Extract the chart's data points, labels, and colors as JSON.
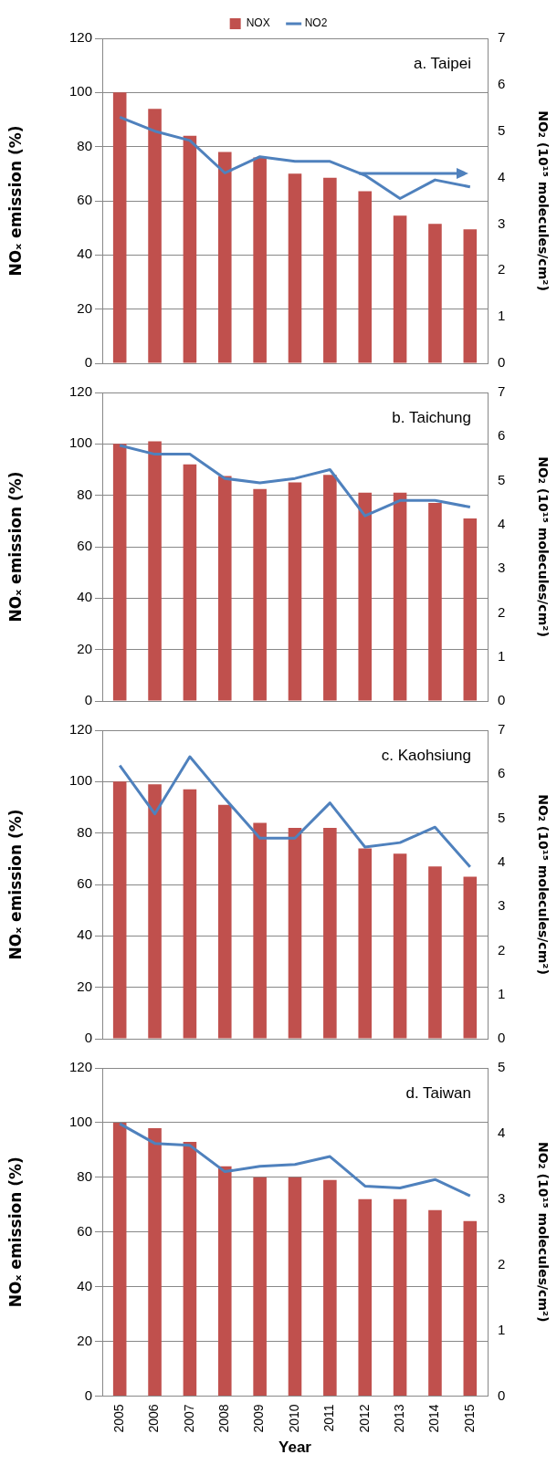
{
  "chart_data": [
    {
      "type": "bar",
      "title": "a. Taipei",
      "categories": [
        "2005",
        "2006",
        "2007",
        "2008",
        "2009",
        "2010",
        "2011",
        "2012",
        "2013",
        "2014",
        "2015"
      ],
      "ylabel": "NOₓ emission (%)",
      "y2label": "NO₂ (10¹⁵ molecules/cm²)",
      "series": [
        {
          "name": "NOX",
          "color": "#c0504d",
          "values": [
            100,
            94,
            84,
            78,
            76,
            70,
            68.5,
            63.5,
            54.5,
            51.5,
            49.5
          ]
        },
        {
          "name": "NO2",
          "type": "line",
          "axis": "y2",
          "color": "#4f81bd",
          "values": [
            5.3,
            5.0,
            4.8,
            4.1,
            4.45,
            4.35,
            4.35,
            4.05,
            3.55,
            3.95,
            3.8
          ]
        }
      ],
      "ylim": [
        0,
        120
      ],
      "yticks": [
        0,
        20,
        40,
        60,
        80,
        100,
        120
      ],
      "y2lim": [
        0,
        7
      ],
      "y2ticks": [
        0,
        1,
        2,
        3,
        4,
        5,
        6,
        7
      ],
      "grid": "y",
      "legend": "top",
      "marker": "none",
      "tick_labels": "y"
    },
    {
      "type": "bar",
      "title": "b. Taichung",
      "categories": [
        "2005",
        "2006",
        "2007",
        "2008",
        "2009",
        "2010",
        "2011",
        "2012",
        "2013",
        "2014",
        "2015"
      ],
      "ylabel": "NOₓ emission (%)",
      "y2label": "NO₂ (10¹⁵ molecules/cm²)",
      "series": [
        {
          "color": "#c0504d",
          "values": [
            100,
            101,
            92,
            87.5,
            82.5,
            85,
            88,
            81,
            81,
            77,
            71
          ]
        },
        {
          "type": "line",
          "axis": "y2",
          "color": "#4f81bd",
          "values": [
            5.8,
            5.6,
            5.6,
            5.05,
            4.95,
            5.05,
            5.25,
            4.2,
            4.55,
            4.55,
            4.4
          ]
        }
      ],
      "ylim": [
        0,
        120
      ],
      "yticks": [
        0,
        20,
        40,
        60,
        80,
        100,
        120
      ],
      "y2lim": [
        0,
        7
      ],
      "y2ticks": [
        0,
        1,
        2,
        3,
        4,
        5,
        6,
        7
      ],
      "grid": "y",
      "marker": "none",
      "tick_labels": "y"
    },
    {
      "type": "bar",
      "title": "c. Kaohsiung",
      "categories": [
        "2005",
        "2006",
        "2007",
        "2008",
        "2009",
        "2010",
        "2011",
        "2012",
        "2013",
        "2014",
        "2015"
      ],
      "ylabel": "NOₓ emission (%)",
      "y2label": "NO₂ (10¹⁵ molecules/cm²)",
      "series": [
        {
          "color": "#c0504d",
          "values": [
            100,
            99,
            97,
            91,
            84,
            82,
            82,
            74,
            72,
            67,
            63
          ]
        },
        {
          "type": "line",
          "axis": "y2",
          "color": "#4f81bd",
          "values": [
            6.2,
            5.1,
            6.4,
            5.45,
            4.55,
            4.55,
            5.35,
            4.35,
            4.45,
            4.8,
            3.9
          ]
        }
      ],
      "ylim": [
        0,
        120
      ],
      "yticks": [
        0,
        20,
        40,
        60,
        80,
        100,
        120
      ],
      "y2lim": [
        0,
        7
      ],
      "y2ticks": [
        0,
        1,
        2,
        3,
        4,
        5,
        6,
        7
      ],
      "grid": "y",
      "marker": "none",
      "tick_labels": "y"
    },
    {
      "type": "bar",
      "title": "d. Taiwan",
      "categories": [
        "2005",
        "2006",
        "2007",
        "2008",
        "2009",
        "2010",
        "2011",
        "2012",
        "2013",
        "2014",
        "2015"
      ],
      "xlabel": "Year",
      "ylabel": "NOₓ emission (%)",
      "y2label": "NO₂ (10¹⁵ molecules/cm²)",
      "series": [
        {
          "color": "#c0504d",
          "values": [
            100,
            98,
            93,
            84,
            80,
            80,
            79,
            72,
            72,
            68,
            64
          ]
        },
        {
          "type": "line",
          "axis": "y2",
          "color": "#4f81bd",
          "values": [
            4.15,
            3.85,
            3.82,
            3.42,
            3.5,
            3.53,
            3.65,
            3.2,
            3.17,
            3.3,
            3.05
          ]
        }
      ],
      "ylim": [
        0,
        120
      ],
      "yticks": [
        0,
        20,
        40,
        60,
        80,
        100,
        120
      ],
      "y2lim": [
        0,
        5
      ],
      "y2ticks": [
        0,
        1,
        2,
        3,
        4,
        5
      ],
      "grid": "y",
      "marker": "none"
    }
  ]
}
